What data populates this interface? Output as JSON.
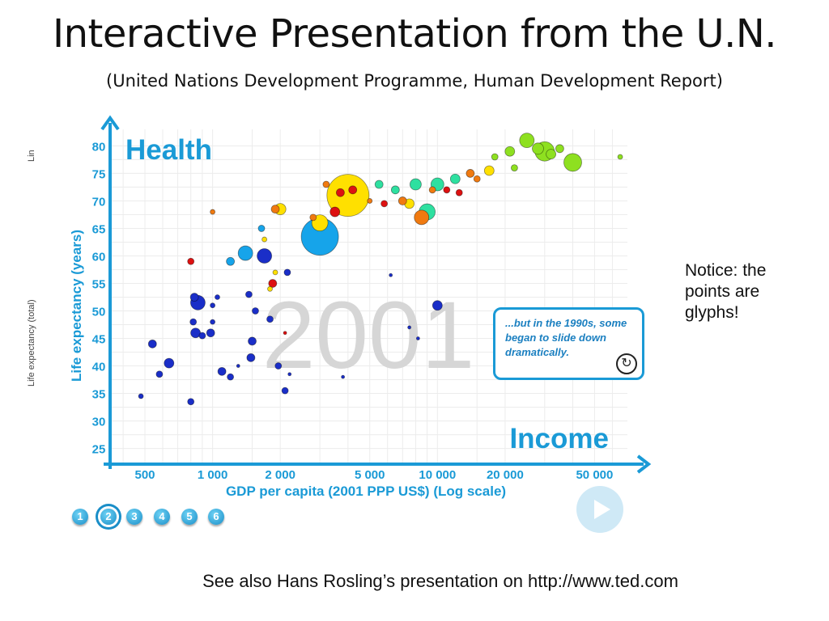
{
  "slide": {
    "title": "Interactive Presentation from the U.N.",
    "subtitle": "(United Nations Development Programme, Human Development Report)",
    "notice": "Notice: the points are glyphs!",
    "footer": "See also Hans Rosling’s presentation on http://www.ted.com",
    "side_label_top": "Lin",
    "side_label_bottom": "Life expectancy (total)"
  },
  "player": {
    "nav_buttons": [
      "1",
      "2",
      "3",
      "4",
      "5",
      "6"
    ],
    "active_index": 1,
    "play_icon": "play-icon",
    "callout_text": "...but in the 1990s, some began to slide down dramatically.",
    "callout_icon": "replay-icon"
  },
  "chart_data": {
    "type": "scatter",
    "title": "Health",
    "x_title": "Income",
    "year": "2001",
    "xlabel": "GDP per capita (2001 PPP US$) (Log scale)",
    "ylabel": "Life expectancy (years)",
    "x_scale": "log",
    "xlim": [
      350,
      70000
    ],
    "ylim": [
      22,
      83
    ],
    "x_ticks": [
      {
        "value": 500,
        "label": "500"
      },
      {
        "value": 1000,
        "label": "1 000"
      },
      {
        "value": 2000,
        "label": "2 000"
      },
      {
        "value": 5000,
        "label": "5 000"
      },
      {
        "value": 10000,
        "label": "10 000"
      },
      {
        "value": 20000,
        "label": "20 000"
      },
      {
        "value": 50000,
        "label": "50 000"
      }
    ],
    "y_ticks": [
      25,
      30,
      35,
      40,
      45,
      50,
      55,
      60,
      65,
      70,
      75,
      80
    ],
    "grid": true,
    "colors": {
      "blue_dark": "#1a2ec8",
      "blue_light": "#16a4ea",
      "yellow": "#ffe000",
      "red": "#dd1111",
      "orange": "#f07a10",
      "teal": "#2ee0a0",
      "green": "#8ee020"
    },
    "points": [
      {
        "x": 4000,
        "y": 71,
        "r": 26,
        "c": "yellow"
      },
      {
        "x": 3000,
        "y": 63.5,
        "r": 23,
        "c": "blue_light"
      },
      {
        "x": 30000,
        "y": 79,
        "r": 12,
        "c": "green"
      },
      {
        "x": 40000,
        "y": 77,
        "r": 11,
        "c": "green"
      },
      {
        "x": 25000,
        "y": 81,
        "r": 9,
        "c": "green"
      },
      {
        "x": 28000,
        "y": 79.5,
        "r": 7,
        "c": "green"
      },
      {
        "x": 32000,
        "y": 78.5,
        "r": 6,
        "c": "green"
      },
      {
        "x": 21000,
        "y": 79,
        "r": 6,
        "c": "green"
      },
      {
        "x": 22000,
        "y": 76,
        "r": 4,
        "c": "green"
      },
      {
        "x": 18000,
        "y": 78,
        "r": 4,
        "c": "green"
      },
      {
        "x": 35000,
        "y": 79.5,
        "r": 5,
        "c": "green"
      },
      {
        "x": 65000,
        "y": 78,
        "r": 3,
        "c": "green"
      },
      {
        "x": 9000,
        "y": 68,
        "r": 10,
        "c": "teal"
      },
      {
        "x": 8000,
        "y": 73,
        "r": 7,
        "c": "teal"
      },
      {
        "x": 10000,
        "y": 73,
        "r": 8,
        "c": "teal"
      },
      {
        "x": 5500,
        "y": 73,
        "r": 5,
        "c": "teal"
      },
      {
        "x": 12000,
        "y": 74,
        "r": 6,
        "c": "teal"
      },
      {
        "x": 6500,
        "y": 72,
        "r": 5,
        "c": "teal"
      },
      {
        "x": 9500,
        "y": 72,
        "r": 4,
        "c": "orange"
      },
      {
        "x": 8500,
        "y": 67,
        "r": 9,
        "c": "orange"
      },
      {
        "x": 14000,
        "y": 75,
        "r": 5,
        "c": "orange"
      },
      {
        "x": 15000,
        "y": 74,
        "r": 4,
        "c": "orange"
      },
      {
        "x": 7000,
        "y": 70,
        "r": 5,
        "c": "orange"
      },
      {
        "x": 1900,
        "y": 68.5,
        "r": 5,
        "c": "orange"
      },
      {
        "x": 3200,
        "y": 73,
        "r": 4,
        "c": "orange"
      },
      {
        "x": 2800,
        "y": 67,
        "r": 4,
        "c": "orange"
      },
      {
        "x": 5000,
        "y": 70,
        "r": 3,
        "c": "orange"
      },
      {
        "x": 1000,
        "y": 68,
        "r": 3,
        "c": "orange"
      },
      {
        "x": 3000,
        "y": 66,
        "r": 10,
        "c": "yellow"
      },
      {
        "x": 2000,
        "y": 68.5,
        "r": 7,
        "c": "yellow"
      },
      {
        "x": 7500,
        "y": 69.5,
        "r": 6,
        "c": "yellow"
      },
      {
        "x": 17000,
        "y": 75.5,
        "r": 6,
        "c": "yellow"
      },
      {
        "x": 1900,
        "y": 57,
        "r": 3,
        "c": "yellow"
      },
      {
        "x": 1700,
        "y": 63,
        "r": 3,
        "c": "yellow"
      },
      {
        "x": 1800,
        "y": 54,
        "r": 3,
        "c": "yellow"
      },
      {
        "x": 3500,
        "y": 68,
        "r": 6,
        "c": "red"
      },
      {
        "x": 4200,
        "y": 72,
        "r": 5,
        "c": "red"
      },
      {
        "x": 3700,
        "y": 71.5,
        "r": 5,
        "c": "red"
      },
      {
        "x": 11000,
        "y": 72,
        "r": 4,
        "c": "red"
      },
      {
        "x": 12500,
        "y": 71.5,
        "r": 4,
        "c": "red"
      },
      {
        "x": 800,
        "y": 59,
        "r": 4,
        "c": "red"
      },
      {
        "x": 1850,
        "y": 55,
        "r": 5,
        "c": "red"
      },
      {
        "x": 5800,
        "y": 69.5,
        "r": 4,
        "c": "red"
      },
      {
        "x": 2100,
        "y": 46,
        "r": 2,
        "c": "red"
      },
      {
        "x": 1400,
        "y": 60.5,
        "r": 9,
        "c": "blue_light"
      },
      {
        "x": 1700,
        "y": 60,
        "r": 9,
        "c": "blue_dark"
      },
      {
        "x": 1200,
        "y": 59,
        "r": 5,
        "c": "blue_light"
      },
      {
        "x": 1650,
        "y": 65,
        "r": 4,
        "c": "blue_light"
      },
      {
        "x": 860,
        "y": 51.5,
        "r": 9,
        "c": "blue_dark"
      },
      {
        "x": 830,
        "y": 52.5,
        "r": 5,
        "c": "blue_dark"
      },
      {
        "x": 840,
        "y": 46,
        "r": 6,
        "c": "blue_dark"
      },
      {
        "x": 820,
        "y": 48,
        "r": 4,
        "c": "blue_dark"
      },
      {
        "x": 980,
        "y": 46,
        "r": 5,
        "c": "blue_dark"
      },
      {
        "x": 900,
        "y": 45.5,
        "r": 4,
        "c": "blue_dark"
      },
      {
        "x": 640,
        "y": 40.5,
        "r": 6,
        "c": "blue_dark"
      },
      {
        "x": 540,
        "y": 44,
        "r": 5,
        "c": "blue_dark"
      },
      {
        "x": 580,
        "y": 38.5,
        "r": 4,
        "c": "blue_dark"
      },
      {
        "x": 1100,
        "y": 39,
        "r": 5,
        "c": "blue_dark"
      },
      {
        "x": 1200,
        "y": 38,
        "r": 4,
        "c": "blue_dark"
      },
      {
        "x": 1500,
        "y": 44.5,
        "r": 5,
        "c": "blue_dark"
      },
      {
        "x": 1480,
        "y": 41.5,
        "r": 5,
        "c": "blue_dark"
      },
      {
        "x": 1960,
        "y": 40,
        "r": 4,
        "c": "blue_dark"
      },
      {
        "x": 1550,
        "y": 50,
        "r": 4,
        "c": "blue_dark"
      },
      {
        "x": 1800,
        "y": 48.5,
        "r": 4,
        "c": "blue_dark"
      },
      {
        "x": 1450,
        "y": 53,
        "r": 4,
        "c": "blue_dark"
      },
      {
        "x": 2150,
        "y": 57,
        "r": 4,
        "c": "blue_dark"
      },
      {
        "x": 480,
        "y": 34.5,
        "r": 3,
        "c": "blue_dark"
      },
      {
        "x": 800,
        "y": 33.5,
        "r": 4,
        "c": "blue_dark"
      },
      {
        "x": 2100,
        "y": 35.5,
        "r": 4,
        "c": "blue_dark"
      },
      {
        "x": 2200,
        "y": 38.5,
        "r": 2,
        "c": "blue_dark"
      },
      {
        "x": 1000,
        "y": 51,
        "r": 3,
        "c": "blue_dark"
      },
      {
        "x": 1050,
        "y": 52.5,
        "r": 3,
        "c": "blue_dark"
      },
      {
        "x": 1000,
        "y": 48,
        "r": 3,
        "c": "blue_dark"
      },
      {
        "x": 1300,
        "y": 40,
        "r": 2,
        "c": "blue_dark"
      },
      {
        "x": 3800,
        "y": 38,
        "r": 2,
        "c": "blue_dark"
      },
      {
        "x": 6200,
        "y": 56.5,
        "r": 2,
        "c": "blue_dark"
      },
      {
        "x": 7500,
        "y": 47,
        "r": 2,
        "c": "blue_dark"
      },
      {
        "x": 8200,
        "y": 45,
        "r": 2,
        "c": "blue_dark"
      },
      {
        "x": 10000,
        "y": 51,
        "r": 6,
        "c": "blue_dark"
      }
    ]
  }
}
